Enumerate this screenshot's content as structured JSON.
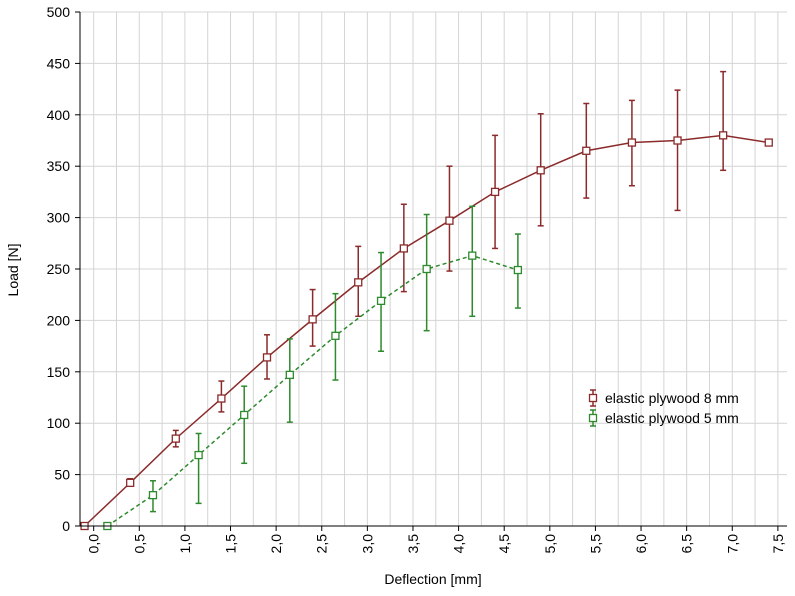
{
  "chart_data": {
    "type": "line",
    "title": "",
    "xlabel": "Deflection [mm]",
    "ylabel": "Load [N]",
    "xlim": [
      -0.15,
      7.6
    ],
    "ylim": [
      0,
      500
    ],
    "grid": true,
    "legend_position": "right",
    "x_tick_labels": [
      "0,0",
      "0,5",
      "1,0",
      "1,5",
      "2,0",
      "2,5",
      "3,0",
      "3,5",
      "4,0",
      "4,5",
      "5,0",
      "5,5",
      "6,0",
      "6,5",
      "7,0",
      "7,5"
    ],
    "x_tick_values": [
      0,
      0.5,
      1,
      1.5,
      2,
      2.5,
      3,
      3.5,
      4,
      4.5,
      5,
      5.5,
      6,
      6.5,
      7,
      7.5
    ],
    "y_tick_labels": [
      "0",
      "50",
      "100",
      "150",
      "200",
      "250",
      "300",
      "350",
      "400",
      "450",
      "500"
    ],
    "y_tick_values": [
      0,
      50,
      100,
      150,
      200,
      250,
      300,
      350,
      400,
      450,
      500
    ],
    "series": [
      {
        "name": "elastic plywood 8 mm",
        "color": "#8b2a2a",
        "line_style": "solid",
        "marker": "square",
        "x": [
          -0.1,
          0.4,
          0.9,
          1.4,
          1.9,
          2.4,
          2.9,
          3.4,
          3.9,
          4.4,
          4.9,
          5.4,
          5.9,
          6.4,
          6.9,
          7.4
        ],
        "y": [
          0,
          42,
          85,
          124,
          164,
          201,
          237,
          270,
          297,
          325,
          346,
          365,
          373,
          375,
          380,
          373
        ],
        "err_low": [
          0,
          39,
          77,
          111,
          143,
          175,
          204,
          228,
          248,
          270,
          292,
          319,
          331,
          307,
          346,
          373
        ],
        "err_high": [
          0,
          46,
          93,
          141,
          186,
          230,
          272,
          313,
          350,
          380,
          401,
          411,
          414,
          424,
          442,
          373
        ]
      },
      {
        "name": "elastic plywood 5 mm",
        "color": "#2d8a2d",
        "line_style": "dashed",
        "marker": "square",
        "x": [
          0.15,
          0.65,
          1.15,
          1.65,
          2.15,
          2.65,
          3.15,
          3.65,
          4.15,
          4.65
        ],
        "y": [
          0,
          30,
          69,
          108,
          147,
          185,
          219,
          250,
          263,
          249
        ],
        "err_low": [
          0,
          14,
          22,
          61,
          101,
          142,
          170,
          190,
          204,
          212
        ],
        "err_high": [
          0,
          44,
          90,
          136,
          182,
          226,
          266,
          303,
          311,
          284
        ]
      }
    ]
  }
}
